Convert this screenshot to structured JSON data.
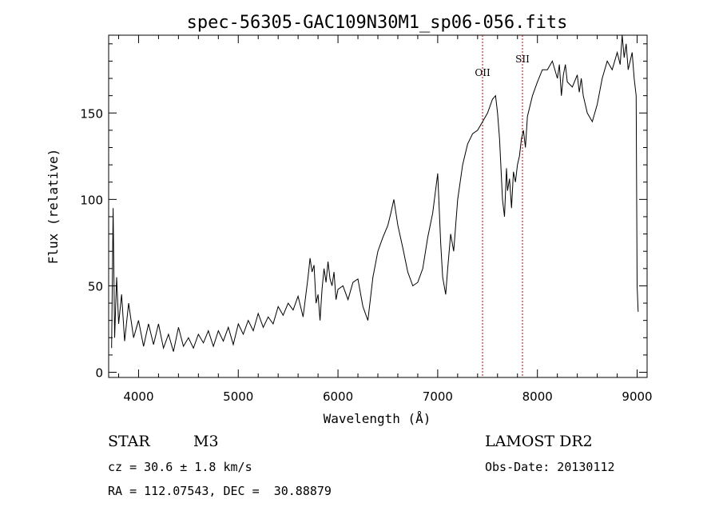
{
  "chart_data": {
    "type": "line",
    "title": "spec-56305-GAC109N30M1_sp06-056.fits",
    "xlabel": "Wavelength (Å)",
    "ylabel": "Flux (relative)",
    "xlim": [
      3700,
      9100
    ],
    "ylim": [
      -3,
      195
    ],
    "xticks": [
      4000,
      5000,
      6000,
      7000,
      8000,
      9000
    ],
    "xtick_labels": [
      "4000",
      "5000",
      "6000",
      "7000",
      "8000",
      "9000"
    ],
    "yticks": [
      0,
      50,
      100,
      150
    ],
    "ytick_labels": [
      "0",
      "50",
      "100",
      "150"
    ],
    "grid": false,
    "legend": "none",
    "series": [
      {
        "x": [
          3730,
          3745,
          3760,
          3780,
          3800,
          3830,
          3860,
          3900,
          3950,
          4000,
          4050,
          4100,
          4150,
          4200,
          4250,
          4300,
          4350,
          4400,
          4450,
          4500,
          4550,
          4600,
          4650,
          4700,
          4750,
          4800,
          4850,
          4900,
          4950,
          5000,
          5050,
          5100,
          5150,
          5200,
          5250,
          5300,
          5350,
          5400,
          5450,
          5500,
          5550,
          5600,
          5650,
          5700,
          5720,
          5740,
          5760,
          5780,
          5800,
          5820,
          5840,
          5860,
          5880,
          5900,
          5920,
          5940,
          5960,
          5980,
          6000,
          6050,
          6100,
          6150,
          6200,
          6250,
          6300,
          6350,
          6400,
          6450,
          6500,
          6530,
          6560,
          6600,
          6650,
          6700,
          6750,
          6800,
          6850,
          6900,
          6950,
          7000,
          7030,
          7050,
          7080,
          7100,
          7130,
          7160,
          7200,
          7250,
          7300,
          7350,
          7400,
          7450,
          7500,
          7550,
          7580,
          7600,
          7620,
          7650,
          7670,
          7690,
          7700,
          7720,
          7740,
          7760,
          7780,
          7800,
          7820,
          7840,
          7860,
          7880,
          7900,
          7950,
          8000,
          8050,
          8100,
          8150,
          8200,
          8220,
          8240,
          8260,
          8280,
          8300,
          8350,
          8400,
          8420,
          8440,
          8460,
          8500,
          8550,
          8600,
          8650,
          8700,
          8750,
          8800,
          8830,
          8850,
          8870,
          8890,
          8910,
          8930,
          8950,
          8970,
          8990,
          9000,
          9010
        ],
        "y": [
          14,
          95,
          20,
          55,
          28,
          45,
          18,
          40,
          20,
          30,
          15,
          28,
          16,
          28,
          14,
          22,
          12,
          26,
          15,
          20,
          14,
          22,
          17,
          24,
          15,
          24,
          18,
          26,
          16,
          28,
          22,
          30,
          24,
          34,
          26,
          32,
          28,
          38,
          33,
          40,
          36,
          44,
          32,
          55,
          66,
          58,
          62,
          40,
          45,
          30,
          48,
          60,
          52,
          64,
          54,
          50,
          58,
          42,
          48,
          50,
          42,
          52,
          54,
          38,
          30,
          55,
          70,
          78,
          85,
          92,
          100,
          85,
          72,
          58,
          50,
          52,
          60,
          78,
          92,
          115,
          75,
          55,
          45,
          60,
          80,
          70,
          100,
          120,
          132,
          138,
          140,
          145,
          150,
          158,
          160,
          150,
          135,
          100,
          90,
          118,
          105,
          112,
          95,
          116,
          110,
          120,
          125,
          135,
          140,
          130,
          148,
          160,
          168,
          175,
          175,
          180,
          170,
          178,
          160,
          172,
          178,
          168,
          165,
          172,
          162,
          170,
          160,
          150,
          145,
          155,
          170,
          180,
          175,
          185,
          178,
          195,
          182,
          190,
          175,
          180,
          185,
          170,
          160,
          50,
          35
        ]
      }
    ],
    "annotations": [
      {
        "label": "OII",
        "x": 7450
      },
      {
        "label": "SII",
        "x": 7850
      }
    ],
    "colors": {
      "spectrum": "#000000",
      "marker_line": "#c00000",
      "axes": "#000000"
    }
  },
  "info": {
    "class_label": "STAR",
    "subclass_label": "M3",
    "survey_label": "LAMOST DR2",
    "redshift_text": "cz = 30.6 ± 1.8 km/s",
    "obs_date_text": "Obs-Date: 20130112",
    "coords_text": "RA = 112.07543, DEC =  30.88879"
  }
}
